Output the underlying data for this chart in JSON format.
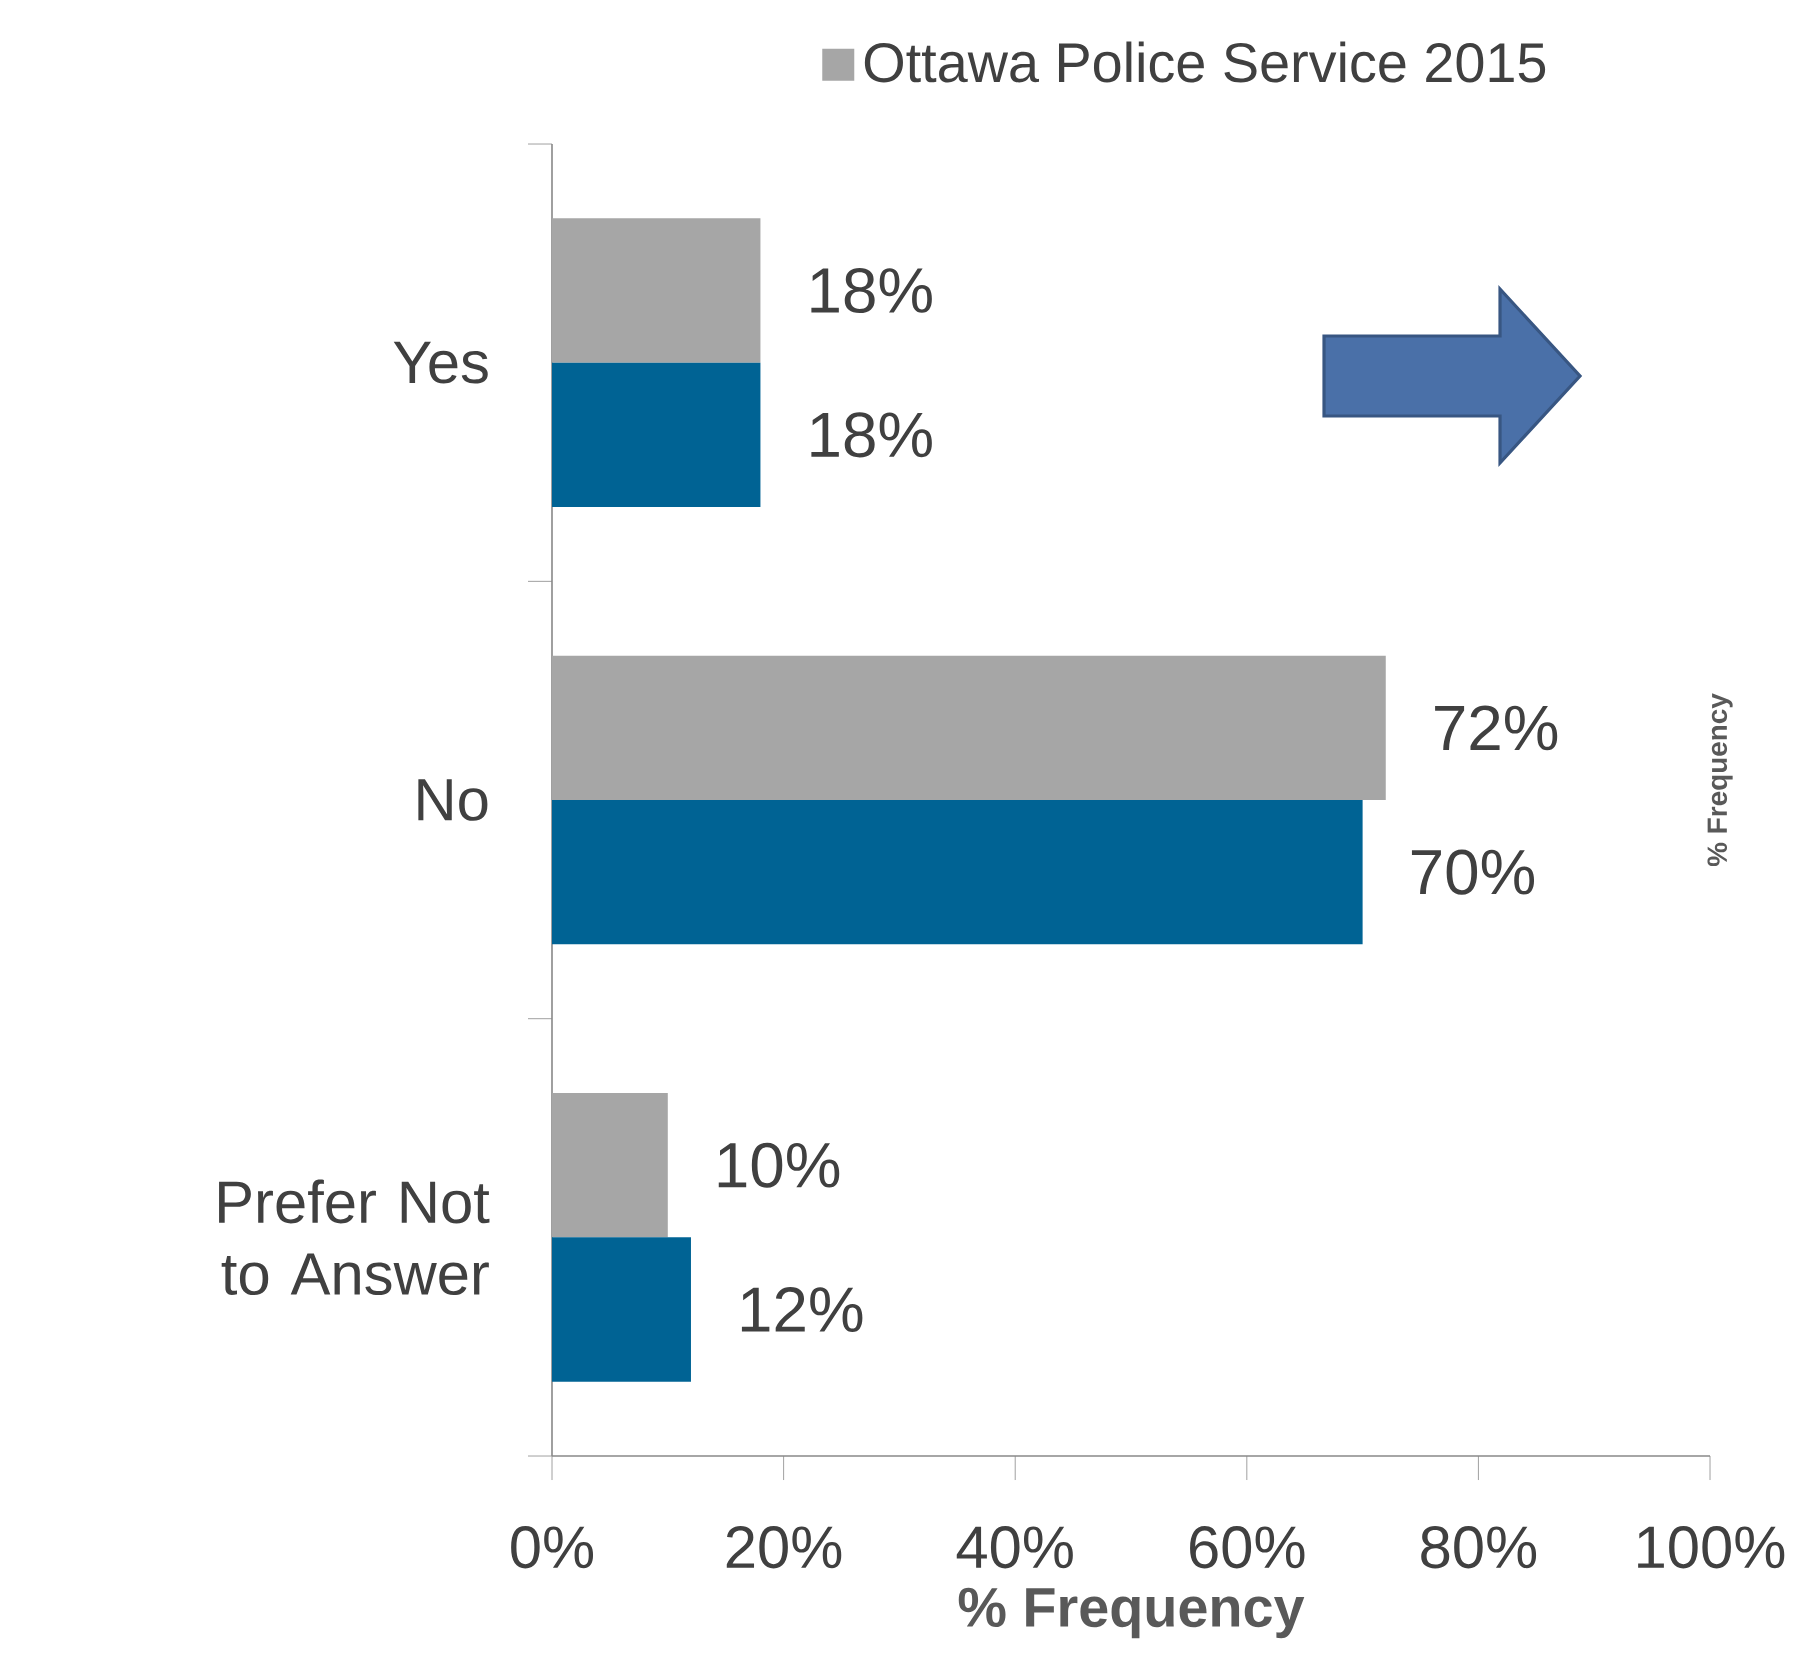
{
  "chart_data": {
    "type": "bar",
    "orientation": "horizontal",
    "categories": [
      "Yes",
      "No",
      "Prefer Not to Answer"
    ],
    "series": [
      {
        "name": "Ottawa Police Service 2015",
        "color": "#a6a6a6",
        "values": [
          18,
          72,
          10
        ],
        "value_labels": [
          "18%",
          "72%",
          "10%"
        ]
      },
      {
        "color": "#006394",
        "values": [
          18,
          70,
          12
        ],
        "value_labels": [
          "18%",
          "70%",
          "12%"
        ]
      }
    ],
    "xlim": [
      0,
      100
    ],
    "xticks": [
      {
        "value": 0,
        "label": "0%"
      },
      {
        "value": 20,
        "label": "20%"
      },
      {
        "value": 40,
        "label": "40%"
      },
      {
        "value": 60,
        "label": "60%"
      },
      {
        "value": 80,
        "label": "80%"
      },
      {
        "value": 100,
        "label": "100%"
      }
    ],
    "xlabel": "% Frequency",
    "legend": "top",
    "annotations": [
      "% Frequency"
    ]
  }
}
